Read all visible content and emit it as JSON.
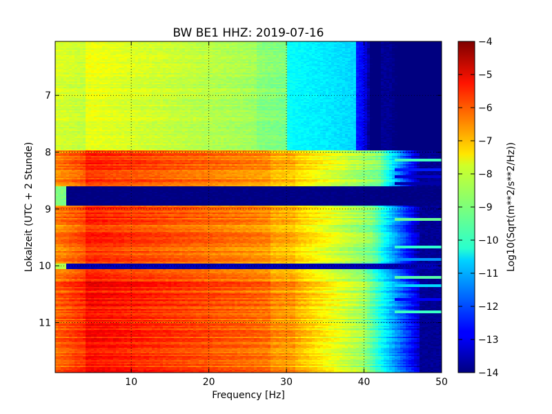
{
  "chart_data": {
    "type": "heatmap",
    "title": "BW BE1 HHZ: 2019-07-16",
    "xlabel": "Frequency [Hz]",
    "ylabel": "Lokalzeit (UTC + 2 Stunde)",
    "xlim": [
      0.2,
      50
    ],
    "ylim": [
      11.88,
      6.05
    ],
    "x_ticks": [
      10,
      20,
      30,
      40,
      50
    ],
    "y_ticks": [
      7,
      8,
      9,
      10,
      11
    ],
    "grid": true,
    "colormap": "jet",
    "colorbar": {
      "label": "Log10(Sqrt(m**2/s**2/Hz))",
      "min": -14,
      "max": -4,
      "ticks": [
        -4,
        -5,
        -6,
        -7,
        -8,
        -9,
        -10,
        -11,
        -12,
        -13,
        -14
      ]
    },
    "time_segments": [
      {
        "start": 6.05,
        "end": 7.96,
        "state": "low-noise",
        "low_freq_level": -7.9,
        "cutoff_hz": 39,
        "dark_hz": 42
      },
      {
        "start": 7.96,
        "end": 8.6,
        "state": "high-noise",
        "low_freq_level": -5.6,
        "cutoff_hz": 42,
        "dark_hz": 47
      },
      {
        "start": 8.6,
        "end": 8.95,
        "state": "gap",
        "level": -14
      },
      {
        "start": 8.95,
        "end": 9.97,
        "state": "high-noise",
        "low_freq_level": -5.6,
        "cutoff_hz": 41,
        "dark_hz": 47
      },
      {
        "start": 9.97,
        "end": 10.06,
        "state": "gap",
        "level": -13.5
      },
      {
        "start": 10.06,
        "end": 11.88,
        "state": "high-noise",
        "low_freq_level": -5.3,
        "cutoff_hz": 40,
        "dark_hz": 47
      }
    ],
    "narrow_bands": [
      {
        "time": 8.15,
        "level": -9.6
      },
      {
        "time": 8.3,
        "level": -12.5
      },
      {
        "time": 8.43,
        "level": -13.2
      },
      {
        "time": 8.55,
        "level": -13.6
      },
      {
        "time": 9.18,
        "level": -9.2
      },
      {
        "time": 9.68,
        "level": -9.8
      },
      {
        "time": 9.88,
        "level": -11.3
      },
      {
        "time": 10.2,
        "level": -9.4
      },
      {
        "time": 10.34,
        "level": -10.6
      },
      {
        "time": 10.6,
        "level": -12.8
      },
      {
        "time": 10.8,
        "level": -9.7
      }
    ]
  }
}
